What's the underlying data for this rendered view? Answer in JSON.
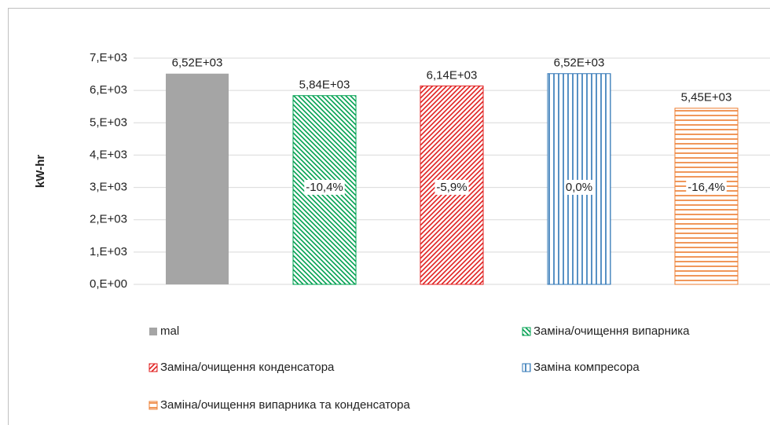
{
  "chart_data": {
    "type": "bar",
    "y_label": "kW-hr",
    "categories": [
      null
    ],
    "ylim": [
      0,
      7000
    ],
    "yticks": [
      {
        "value": 0,
        "label": "0,E+00"
      },
      {
        "value": 1000,
        "label": "1,E+03"
      },
      {
        "value": 2000,
        "label": "2,E+03"
      },
      {
        "value": 3000,
        "label": "3,E+03"
      },
      {
        "value": 4000,
        "label": "4,E+03"
      },
      {
        "value": 5000,
        "label": "5,E+03"
      },
      {
        "value": 6000,
        "label": "6,E+03"
      },
      {
        "value": 7000,
        "label": "7,E+03"
      }
    ],
    "grid": true,
    "legend": "bottom",
    "series": [
      {
        "name": "mal",
        "color": "#a5a5a5",
        "pattern": "solid",
        "values": [
          6520
        ],
        "value_labels": [
          "6,52E+03"
        ]
      },
      {
        "name": "Заміна/очищення випарника",
        "color": "#00a050",
        "pattern": "diagonal-down",
        "values": [
          5840
        ],
        "value_labels": [
          "5,84E+03"
        ],
        "annotation": "-10,4%"
      },
      {
        "name": "Заміна/очищення конденсатора",
        "color": "#e02020",
        "pattern": "diagonal-up",
        "values": [
          6140
        ],
        "value_labels": [
          "6,14E+03"
        ],
        "annotation": "-5,9%"
      },
      {
        "name": "Заміна компресора",
        "color": "#2e75b6",
        "pattern": "vertical",
        "values": [
          6520
        ],
        "value_labels": [
          "6,52E+03"
        ],
        "annotation": "0,0%"
      },
      {
        "name": "Заміна/очищення випарника та конденсатора",
        "color": "#ed7d31",
        "pattern": "horizontal",
        "values": [
          5450
        ],
        "value_labels": [
          "5,45E+03"
        ],
        "annotation": "-16,4%"
      }
    ]
  }
}
